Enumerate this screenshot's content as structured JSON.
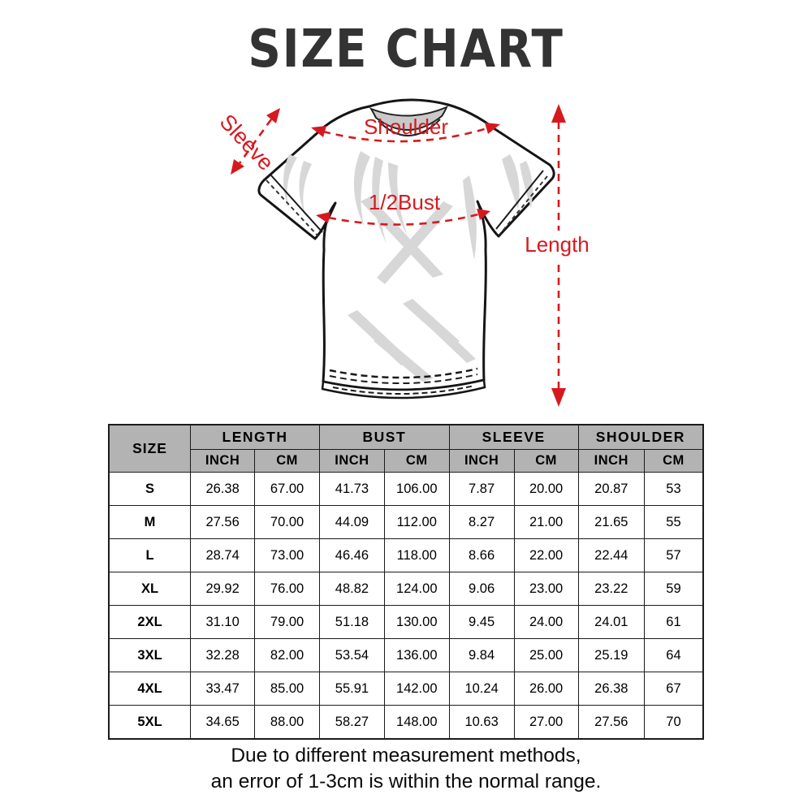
{
  "title": "SIZE CHART",
  "colors": {
    "annotation_red": "#d6191f",
    "header_gray": "#b3b3b3",
    "border_dark": "#1b1b1b",
    "title_color": "#333333",
    "shirt_shade_gray": "#d7d7d7"
  },
  "diagram": {
    "labels": {
      "sleeve": "Sleeve",
      "shoulder": "Shoulder",
      "bust": "1/2Bust",
      "length": "Length"
    }
  },
  "chart_data": {
    "type": "table",
    "title": "SIZE CHART",
    "size_column_header": "SIZE",
    "column_groups": [
      "LENGTH",
      "BUST",
      "SLEEVE",
      "SHOULDER"
    ],
    "unit_headers": [
      "INCH",
      "CM",
      "INCH",
      "CM",
      "INCH",
      "CM",
      "INCH",
      "CM"
    ],
    "rows": [
      {
        "size": "S",
        "values": [
          "26.38",
          "67.00",
          "41.73",
          "106.00",
          "7.87",
          "20.00",
          "20.87",
          "53"
        ]
      },
      {
        "size": "M",
        "values": [
          "27.56",
          "70.00",
          "44.09",
          "112.00",
          "8.27",
          "21.00",
          "21.65",
          "55"
        ]
      },
      {
        "size": "L",
        "values": [
          "28.74",
          "73.00",
          "46.46",
          "118.00",
          "8.66",
          "22.00",
          "22.44",
          "57"
        ]
      },
      {
        "size": "XL",
        "values": [
          "29.92",
          "76.00",
          "48.82",
          "124.00",
          "9.06",
          "23.00",
          "23.22",
          "59"
        ]
      },
      {
        "size": "2XL",
        "values": [
          "31.10",
          "79.00",
          "51.18",
          "130.00",
          "9.45",
          "24.00",
          "24.01",
          "61"
        ]
      },
      {
        "size": "3XL",
        "values": [
          "32.28",
          "82.00",
          "53.54",
          "136.00",
          "9.84",
          "25.00",
          "25.19",
          "64"
        ]
      },
      {
        "size": "4XL",
        "values": [
          "33.47",
          "85.00",
          "55.91",
          "142.00",
          "10.24",
          "26.00",
          "26.38",
          "67"
        ]
      },
      {
        "size": "5XL",
        "values": [
          "34.65",
          "88.00",
          "58.27",
          "148.00",
          "10.63",
          "27.00",
          "27.56",
          "70"
        ]
      }
    ]
  },
  "footer": {
    "line1": "Due to different measurement methods,",
    "line2": "an error of 1-3cm is within the normal range."
  }
}
